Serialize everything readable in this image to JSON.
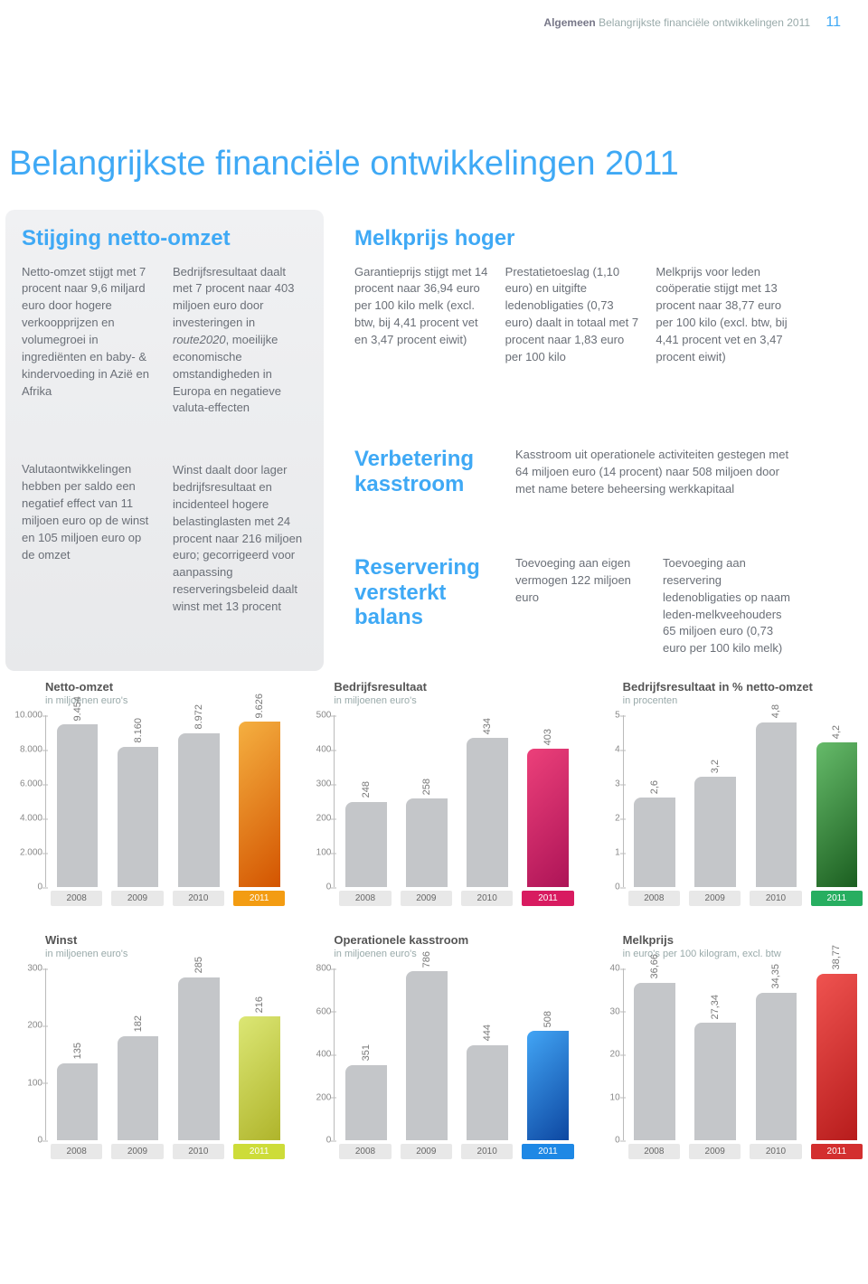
{
  "header": {
    "section": "Algemeen",
    "subsection": "Belangrijkste financiële ontwikkelingen 2011",
    "page": "11"
  },
  "title": "Belangrijkste financiële ontwikkelingen 2011",
  "panels": {
    "stijging": {
      "heading": "Stijging netto-omzet",
      "c1a": "Netto-omzet stijgt met 7 procent naar 9,6 miljard euro door hogere verkoopprijzen en volumegroei in ingrediënten en baby- & kindervoeding in Azië en Afrika",
      "c1b": "Valutaontwikkelingen hebben per saldo een negatief effect van 11 miljoen euro op de winst en 105 miljoen euro op de omzet",
      "c2a_pre": "Bedrijfsresultaat daalt met 7 procent naar 403 miljoen euro door investeringen in ",
      "c2a_route": "route2020",
      "c2a_post": ", moeilijke economische omstandigheden in Europa en negatieve valuta-effecten",
      "c2b": "Winst daalt door lager bedrijfsresultaat en incidenteel hogere belastinglasten met 24 procent naar 216 miljoen euro; gecorrigeerd voor aanpassing reserveringsbeleid daalt winst met 13 procent"
    },
    "melkprijs": {
      "heading": "Melkprijs hoger",
      "c1": "Garantieprijs stijgt met 14 procent naar 36,94 euro per 100 kilo melk (excl. btw, bij 4,41 procent vet en 3,47 procent eiwit)",
      "c2": "Prestatietoeslag (1,10 euro) en uitgifte ledenobligaties (0,73 euro) daalt in totaal met 7 procent naar 1,83 euro per 100 kilo",
      "c3": "Melkprijs voor leden coöperatie stijgt met 13 procent naar 38,77 euro per 100 kilo (excl. btw, bij 4,41 procent vet en 3,47 procent eiwit)"
    },
    "kasstroom": {
      "heading": "Verbetering kasstroom",
      "body": "Kasstroom uit operationele activiteiten gestegen met 64 miljoen euro (14 procent) naar 508 miljoen door met name betere beheersing werkkapitaal"
    },
    "reservering": {
      "heading": "Reservering versterkt balans",
      "c1": "Toevoeging aan eigen vermogen 122 miljoen euro",
      "c2": "Toevoeging aan reservering ledenobligaties op naam leden-melkveehouders 65 miljoen euro (0,73 euro per 100 kilo melk)"
    }
  },
  "chart_common": {
    "years": [
      "2008",
      "2009",
      "2010",
      "2011"
    ],
    "gray": "#c4c6c9",
    "xlabel_hl_bg": {
      "netto": "#f39c12",
      "bedrijf": "#d81b60",
      "pct": "#27ae60",
      "winst": "#cddc39",
      "kas": "#1e88e5",
      "melk": "#d32f2f"
    }
  },
  "charts": [
    {
      "id": "netto",
      "title": "Netto-omzet",
      "sub": "in miljoenen euro's",
      "values": [
        9454,
        8160,
        8972,
        9626
      ],
      "labels": [
        "9.454",
        "8.160",
        "8.972",
        "9.626"
      ],
      "ymax": 10000,
      "yticks": [
        0,
        2000,
        4000,
        6000,
        8000,
        10000
      ],
      "yticklabels": [
        "0",
        "2.000",
        "4.000",
        "6.000",
        "8.000",
        "10.000"
      ],
      "hl_color": "#f39c12",
      "hl_gradient": "linear-gradient(135deg,#f5b041,#d35400)"
    },
    {
      "id": "bedrijf",
      "title": "Bedrijfsresultaat",
      "sub": "in miljoenen euro's",
      "values": [
        248,
        258,
        434,
        403
      ],
      "labels": [
        "248",
        "258",
        "434",
        "403"
      ],
      "ymax": 500,
      "yticks": [
        0,
        100,
        200,
        300,
        400,
        500
      ],
      "yticklabels": [
        "0",
        "100",
        "200",
        "300",
        "400",
        "500"
      ],
      "hl_color": "#d81b60",
      "hl_gradient": "linear-gradient(135deg,#ec407a,#ad1457)"
    },
    {
      "id": "pct",
      "title": "Bedrijfsresultaat in % netto-omzet",
      "sub": "in procenten",
      "values": [
        2.6,
        3.2,
        4.8,
        4.2
      ],
      "labels": [
        "2,6",
        "3,2",
        "4,8",
        "4,2"
      ],
      "ymax": 5,
      "yticks": [
        0,
        1,
        2,
        3,
        4,
        5
      ],
      "yticklabels": [
        "0",
        "1",
        "2",
        "3",
        "4",
        "5"
      ],
      "hl_color": "#27ae60",
      "hl_gradient": "linear-gradient(135deg,#66bb6a,#1b5e20)"
    },
    {
      "id": "winst",
      "title": "Winst",
      "sub": "in miljoenen euro's",
      "values": [
        135,
        182,
        285,
        216
      ],
      "labels": [
        "135",
        "182",
        "285",
        "216"
      ],
      "ymax": 300,
      "yticks": [
        0,
        100,
        200,
        300
      ],
      "yticklabels": [
        "0",
        "100",
        "200",
        "300"
      ],
      "hl_color": "#cddc39",
      "hl_gradient": "linear-gradient(135deg,#dce775,#afb42b)"
    },
    {
      "id": "kas",
      "title": "Operationele kasstroom",
      "sub": "in miljoenen euro's",
      "values": [
        351,
        786,
        444,
        508
      ],
      "labels": [
        "351",
        "786",
        "444",
        "508"
      ],
      "ymax": 800,
      "yticks": [
        0,
        200,
        400,
        600,
        800
      ],
      "yticklabels": [
        "0",
        "200",
        "400",
        "600",
        "800"
      ],
      "hl_color": "#1e88e5",
      "hl_gradient": "linear-gradient(135deg,#42a5f5,#0d47a1)"
    },
    {
      "id": "melk",
      "title": "Melkprijs",
      "sub": "in euro's per 100 kilogram, excl. btw",
      "values": [
        36.66,
        27.34,
        34.35,
        38.77
      ],
      "labels": [
        "36,66",
        "27,34",
        "34,35",
        "38,77"
      ],
      "ymax": 40,
      "yticks": [
        0,
        10,
        20,
        30,
        40
      ],
      "yticklabels": [
        "0",
        "10",
        "20",
        "30",
        "40"
      ],
      "hl_color": "#d32f2f",
      "hl_gradient": "linear-gradient(135deg,#ef5350,#b71c1c)"
    }
  ]
}
